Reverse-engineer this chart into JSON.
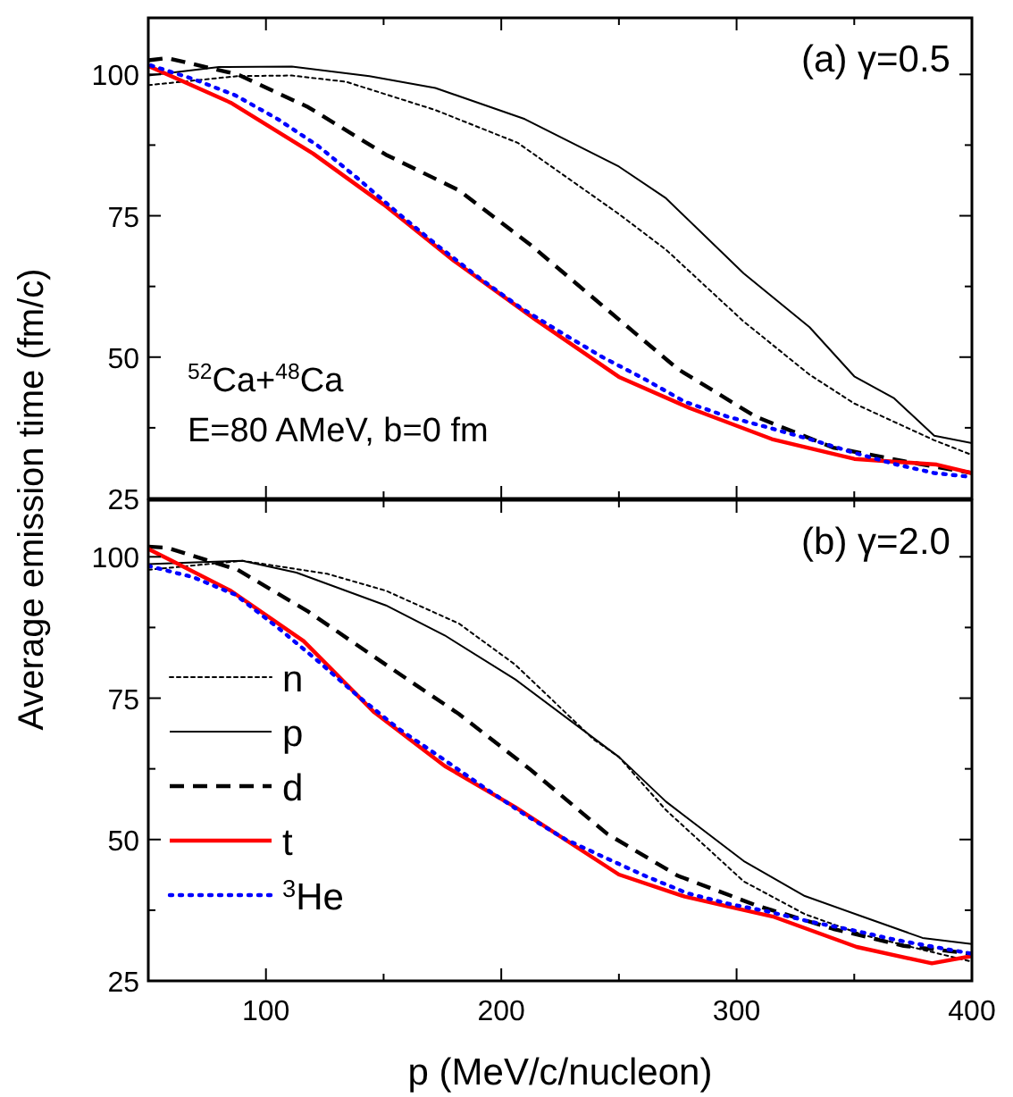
{
  "chart_data": [
    {
      "type": "line",
      "title": "(a) γ=0.5",
      "ylabel": "Average emission time (fm/c)",
      "annotations": [
        "$^{52}$Ca+$^{48}$Ca",
        "E=80 AMeV, b=0 fm"
      ],
      "xlim": [
        50,
        400
      ],
      "xticks": [
        100,
        {
          "value": 150,
          "label": null
        },
        200,
        {
          "value": 250,
          "label": null
        },
        300,
        {
          "value": 350,
          "label": null
        },
        400
      ],
      "ylim": [
        25,
        110
      ],
      "yticks": [
        25,
        {
          "value": 37.5,
          "label": null
        },
        50,
        {
          "value": 62.5,
          "label": null
        },
        75,
        {
          "value": 87.5,
          "label": null
        },
        100
      ],
      "tick_labels": "y",
      "legend": false,
      "grid": false,
      "marker": "none",
      "series": [
        {
          "color": "#000000",
          "line_style": "dotted",
          "x": [
            50,
            88,
            111,
            134,
            172,
            207,
            250,
            270,
            303,
            331,
            350,
            384,
            400
          ],
          "values": [
            98.1,
            99.7,
            99.8,
            98.7,
            93.7,
            87.9,
            75.3,
            69,
            56.3,
            46.9,
            41.8,
            35.3,
            32.7
          ]
        },
        {
          "color": "#000000",
          "line_style": "solid",
          "x": [
            50,
            80,
            111,
            144,
            172,
            210,
            250,
            270,
            303,
            331,
            350,
            367,
            384,
            400
          ],
          "values": [
            99.8,
            101.3,
            101.4,
            99.7,
            97.6,
            92.1,
            83.7,
            78.1,
            64.8,
            55.3,
            46.6,
            42.7,
            36.1,
            34.8
          ]
        },
        {
          "color": "#000000",
          "line_style": "dashed",
          "x": [
            50,
            58,
            88,
            118,
            151,
            182,
            212,
            245,
            275,
            308,
            341,
            371,
            400
          ],
          "values": [
            102.5,
            102.9,
            100,
            94.2,
            85.8,
            79.5,
            70,
            58.4,
            47.9,
            39.5,
            34,
            31.6,
            29.5
          ]
        },
        {
          "color": "#ff0000",
          "line_style": "solid",
          "x": [
            50,
            85,
            120,
            150,
            180,
            215,
            250,
            280,
            315,
            350,
            385,
            400
          ],
          "values": [
            101.5,
            95,
            86,
            77,
            67,
            56.5,
            46.5,
            41,
            35.5,
            32,
            31,
            29.5
          ]
        },
        {
          "color": "#0000ff",
          "line_style": "dotted",
          "x": [
            51,
            69,
            87,
            105,
            122,
            139,
            156,
            173,
            191,
            208,
            226,
            243,
            261,
            278,
            296,
            313,
            331,
            349,
            367,
            384,
            400
          ],
          "values": [
            101.6,
            99.2,
            96.3,
            92.1,
            87.4,
            81.6,
            75.5,
            69.7,
            63.9,
            58.8,
            54.2,
            50,
            46.1,
            42.1,
            39.5,
            37.6,
            35.5,
            33.2,
            31.1,
            29.5,
            28.8
          ]
        }
      ]
    },
    {
      "type": "line",
      "title": "(b) γ=2.0",
      "xlabel": "p (MeV/c/nucleon)",
      "xlim": [
        50,
        400
      ],
      "xticks": [
        100,
        {
          "value": 150,
          "label": null
        },
        200,
        {
          "value": 250,
          "label": null
        },
        300,
        {
          "value": 350,
          "label": null
        },
        400
      ],
      "ylim": [
        25,
        110
      ],
      "yticks": [
        25,
        {
          "value": 37.5,
          "label": null
        },
        50,
        {
          "value": 62.5,
          "label": null
        },
        75,
        {
          "value": 87.5,
          "label": null
        },
        100
      ],
      "legend": "bottom left",
      "grid": false,
      "marker": "none",
      "series": [
        {
          "name": "n",
          "color": "#000000",
          "line_style": "dotted",
          "x": [
            50,
            90,
            126,
            151,
            182,
            206,
            239,
            250,
            270,
            303,
            329,
            354,
            379,
            400
          ],
          "values": [
            97.7,
            99.3,
            97,
            94,
            88.2,
            80.9,
            67.8,
            64.6,
            55.2,
            42.6,
            36.8,
            33.1,
            30.5,
            28.4
          ]
        },
        {
          "name": "p",
          "color": "#000000",
          "line_style": "solid",
          "x": [
            50,
            70,
            90,
            113,
            151,
            176,
            206,
            250,
            270,
            303,
            329,
            354,
            379,
            400
          ],
          "values": [
            98.7,
            99,
            99.3,
            97.2,
            91.4,
            86.1,
            78.3,
            64.6,
            56.7,
            46.2,
            40,
            36.3,
            32.6,
            31.5
          ]
        },
        {
          "name": "d",
          "color": "#000000",
          "line_style": "dashed",
          "x": [
            50,
            58,
            88,
            118,
            151,
            182,
            212,
            245,
            275,
            308,
            341,
            371,
            400
          ],
          "values": [
            101.8,
            101.6,
            97.7,
            90.3,
            80.9,
            72.2,
            62.5,
            51,
            43.6,
            38.4,
            34.2,
            31.2,
            29.8
          ]
        },
        {
          "name": "t",
          "color": "#ff0000",
          "line_style": "solid",
          "x": [
            50,
            60,
            85,
            116,
            146,
            176,
            206,
            250,
            278,
            316,
            351,
            383,
            400
          ],
          "values": [
            101.4,
            99.3,
            94,
            85.1,
            72.5,
            63,
            55.7,
            43.8,
            39.9,
            36.3,
            31,
            28.1,
            29.4
          ]
        },
        {
          "name": "$^{3}$He",
          "color": "#0000ff",
          "line_style": "dotted",
          "x": [
            50,
            69,
            87,
            105,
            122,
            139,
            156,
            174,
            192,
            210,
            227,
            244,
            261,
            279,
            297,
            313,
            331,
            349,
            367,
            384,
            400
          ],
          "values": [
            98.4,
            96.4,
            93.3,
            87.5,
            81.6,
            75.4,
            69.7,
            64.6,
            59.4,
            54.4,
            50.1,
            46.8,
            43.6,
            40.5,
            38.6,
            37.3,
            35.5,
            34,
            32.3,
            31,
            29.8
          ]
        }
      ]
    }
  ]
}
